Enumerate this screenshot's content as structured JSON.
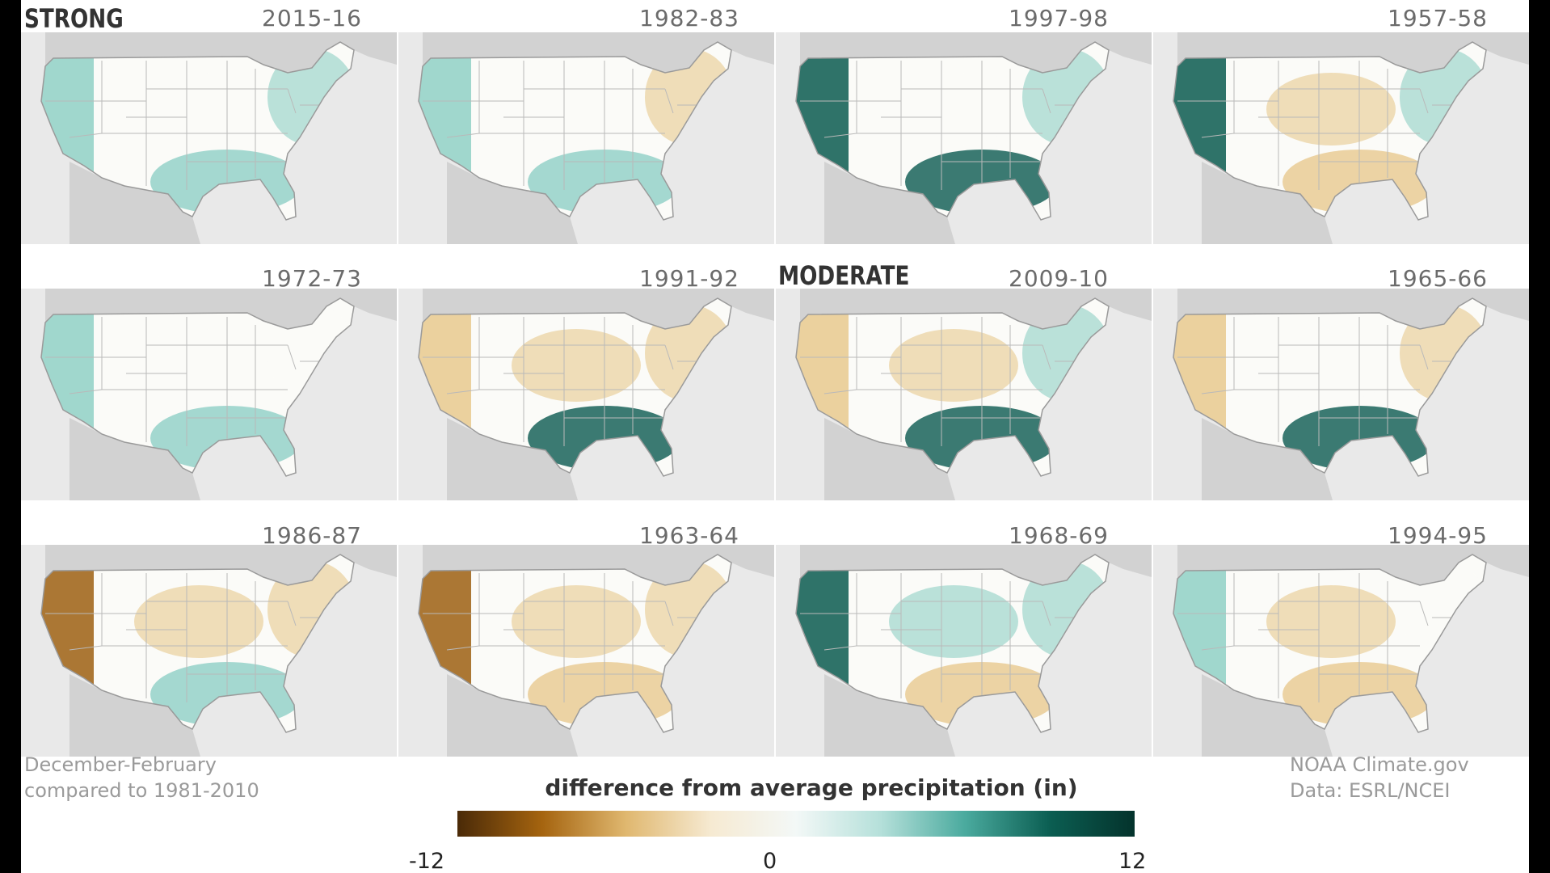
{
  "categories": {
    "strong": "STRONG",
    "moderate": "MODERATE"
  },
  "panels": [
    {
      "years": "2015-16",
      "west": "wet",
      "south": "wet",
      "midwest": "neutral",
      "northeast": "wet"
    },
    {
      "years": "1982-83",
      "west": "wet",
      "south": "wet",
      "midwest": "neutral",
      "northeast": "dry"
    },
    {
      "years": "1997-98",
      "west": "very-wet",
      "south": "very-wet",
      "midwest": "neutral",
      "northeast": "wet"
    },
    {
      "years": "1957-58",
      "west": "very-wet",
      "south": "dry",
      "midwest": "dry",
      "northeast": "wet"
    },
    {
      "years": "1972-73",
      "west": "wet",
      "south": "wet",
      "midwest": "neutral",
      "northeast": "neutral"
    },
    {
      "years": "1991-92",
      "west": "dry",
      "south": "very-wet",
      "midwest": "dry",
      "northeast": "dry"
    },
    {
      "years": "2009-10",
      "west": "dry",
      "south": "very-wet",
      "midwest": "dry",
      "northeast": "wet"
    },
    {
      "years": "1965-66",
      "west": "dry",
      "south": "very-wet",
      "midwest": "neutral",
      "northeast": "dry"
    },
    {
      "years": "1986-87",
      "west": "very-dry",
      "south": "wet",
      "midwest": "dry",
      "northeast": "dry"
    },
    {
      "years": "1963-64",
      "west": "very-dry",
      "south": "dry",
      "midwest": "dry",
      "northeast": "dry"
    },
    {
      "years": "1968-69",
      "west": "very-wet",
      "south": "dry",
      "midwest": "wet",
      "northeast": "wet"
    },
    {
      "years": "1994-95",
      "west": "wet",
      "south": "dry",
      "midwest": "dry",
      "northeast": "neutral"
    }
  ],
  "notes": {
    "period_line1": "December-February",
    "period_line2": "compared to 1981-2010",
    "credit_line1": "NOAA Climate.gov",
    "credit_line2": "Data: ESRL/NCEI"
  },
  "legend": {
    "title": "difference from average precipitation (in)",
    "min_label": "-12",
    "mid_label": "0",
    "max_label": "12",
    "colors": [
      "#4a2a08",
      "#a5640f",
      "#e0b870",
      "#f6ead2",
      "#f3f8f7",
      "#b5e0da",
      "#4aaa9e",
      "#0b5e52",
      "#04332c"
    ]
  },
  "colors": {
    "land": "#fbfbf8",
    "background_land": "#d2d2d2",
    "ocean": "#e9e9e9",
    "very_dry": "#9c5f12",
    "dry": "#e8c98e",
    "wet": "#8fd0c5",
    "very_wet": "#0b5a50"
  }
}
